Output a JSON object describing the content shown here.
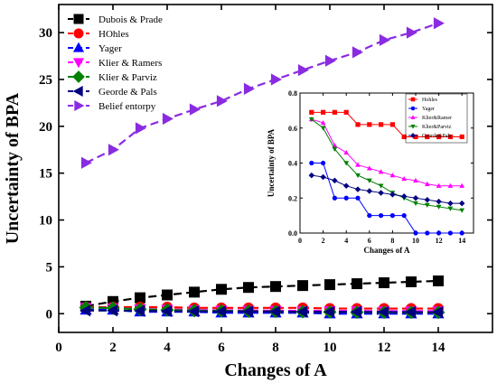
{
  "chart_data": [
    {
      "type": "line",
      "xlabel": "Changes of A",
      "ylabel": "Uncertainty of BPA",
      "xlim": [
        0,
        16
      ],
      "ylim": [
        -2,
        33
      ],
      "xticks": [
        0,
        2,
        4,
        6,
        8,
        10,
        12,
        14
      ],
      "yticks": [
        0,
        5,
        10,
        15,
        20,
        25,
        30
      ],
      "legend_position": "top-left",
      "grid": false,
      "x": [
        1,
        2,
        3,
        4,
        5,
        6,
        7,
        8,
        9,
        10,
        11,
        12,
        13,
        14
      ],
      "series": [
        {
          "name": "Dubois & Prade",
          "color": "#000000",
          "marker": "square",
          "values": [
            0.8,
            1.3,
            1.7,
            2.0,
            2.3,
            2.6,
            2.8,
            2.9,
            3.0,
            3.1,
            3.2,
            3.3,
            3.4,
            3.5
          ]
        },
        {
          "name": "HOhles",
          "color": "#ff0000",
          "marker": "circle",
          "values": [
            0.7,
            0.7,
            0.7,
            0.7,
            0.62,
            0.62,
            0.62,
            0.62,
            0.62,
            0.55,
            0.55,
            0.55,
            0.55,
            0.55
          ]
        },
        {
          "name": "Yager",
          "color": "#0000ff",
          "marker": "triangle-up",
          "values": [
            0.4,
            0.4,
            0.2,
            0.2,
            0.2,
            0.1,
            0.1,
            0.1,
            0.1,
            0.0,
            0.0,
            0.0,
            0.0,
            0.0
          ]
        },
        {
          "name": "Klier & Ramers",
          "color": "#ff00ff",
          "marker": "triangle-down",
          "values": [
            0.65,
            0.62,
            0.5,
            0.45,
            0.4,
            0.37,
            0.35,
            0.33,
            0.31,
            0.3,
            0.29,
            0.28,
            0.28,
            0.28
          ]
        },
        {
          "name": "Klier & Parviz",
          "color": "#008000",
          "marker": "diamond",
          "values": [
            0.65,
            0.6,
            0.47,
            0.4,
            0.33,
            0.3,
            0.27,
            0.23,
            0.2,
            0.18,
            0.16,
            0.15,
            0.14,
            0.13
          ]
        },
        {
          "name": "Georde & Pals",
          "color": "#000080",
          "marker": "triangle-left",
          "values": [
            0.33,
            0.33,
            0.3,
            0.27,
            0.25,
            0.24,
            0.23,
            0.22,
            0.21,
            0.2,
            0.19,
            0.18,
            0.17,
            0.16
          ]
        },
        {
          "name": "Belief entorpy",
          "color": "#8a2be2",
          "marker": "triangle-right",
          "values": [
            16.1,
            17.5,
            19.8,
            20.8,
            21.8,
            22.7,
            24.0,
            25.0,
            26.0,
            27.0,
            27.9,
            29.2,
            30.0,
            31.0
          ]
        }
      ]
    },
    {
      "type": "line",
      "xlabel": "Changes of A",
      "ylabel": "Uncertainty of BPA",
      "xlim": [
        0,
        15
      ],
      "ylim": [
        0,
        0.8
      ],
      "xticks": [
        0,
        2,
        4,
        6,
        8,
        10,
        12,
        14
      ],
      "yticks": [
        0.0,
        0.2,
        0.4,
        0.6,
        0.8
      ],
      "legend_position": "top-right",
      "grid": false,
      "x": [
        1,
        2,
        3,
        4,
        5,
        6,
        7,
        8,
        9,
        10,
        11,
        12,
        13,
        14
      ],
      "series": [
        {
          "name": "Hohles",
          "color": "#ff0000",
          "marker": "square",
          "values": [
            0.69,
            0.69,
            0.69,
            0.69,
            0.62,
            0.62,
            0.62,
            0.62,
            0.55,
            0.55,
            0.55,
            0.55,
            0.55,
            0.55
          ]
        },
        {
          "name": "Yager",
          "color": "#0000ff",
          "marker": "circle",
          "values": [
            0.4,
            0.4,
            0.2,
            0.2,
            0.2,
            0.1,
            0.1,
            0.1,
            0.1,
            0.0,
            0.0,
            0.0,
            0.0,
            0.0
          ]
        },
        {
          "name": "Klier&Ramer",
          "color": "#ff00ff",
          "marker": "triangle-up",
          "values": [
            0.65,
            0.63,
            0.5,
            0.46,
            0.39,
            0.37,
            0.35,
            0.33,
            0.31,
            0.3,
            0.28,
            0.27,
            0.27,
            0.27
          ]
        },
        {
          "name": "Klier&Parviz",
          "color": "#008000",
          "marker": "triangle-down",
          "values": [
            0.65,
            0.6,
            0.48,
            0.4,
            0.33,
            0.3,
            0.27,
            0.23,
            0.2,
            0.17,
            0.16,
            0.15,
            0.14,
            0.13
          ]
        },
        {
          "name": "Georde&Pals",
          "color": "#000080",
          "marker": "diamond",
          "values": [
            0.33,
            0.32,
            0.3,
            0.27,
            0.25,
            0.24,
            0.23,
            0.22,
            0.21,
            0.2,
            0.19,
            0.18,
            0.17,
            0.17
          ]
        }
      ]
    }
  ]
}
